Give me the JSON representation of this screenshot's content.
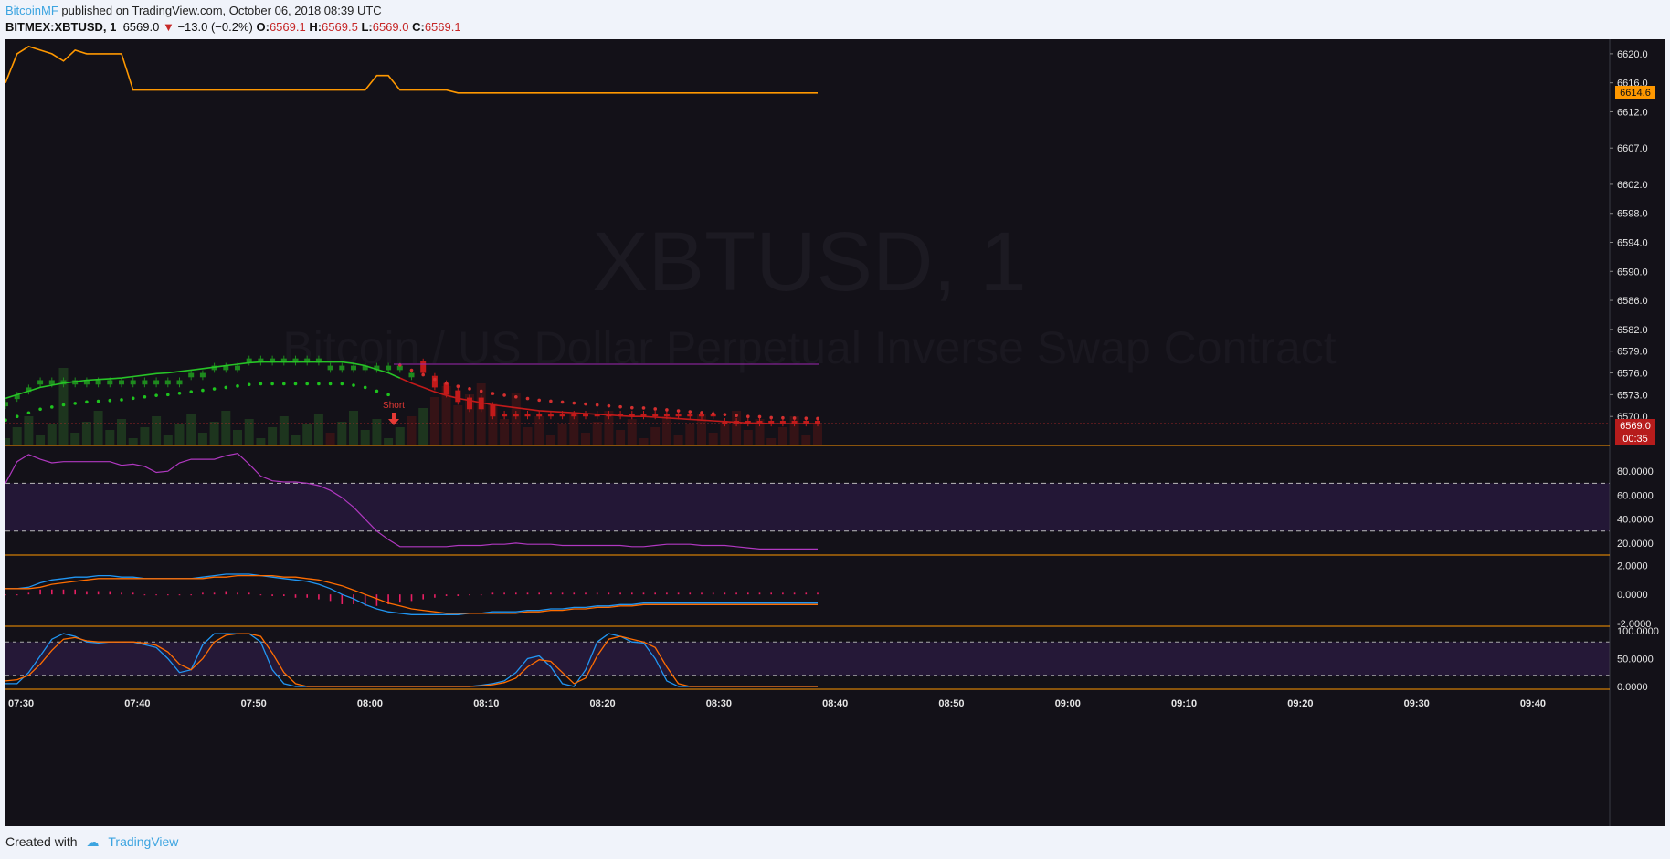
{
  "header": {
    "author": "BitcoinMF",
    "published": "published on TradingView.com, October 06, 2018 08:39 UTC"
  },
  "legend": {
    "symbol": "BITMEX:XBTUSD, 1",
    "price": "6569.0",
    "arrow": "▼",
    "change": "−13.0 (−0.2%)",
    "o_label": "O:",
    "o": "6569.1",
    "h_label": "H:",
    "h": "6569.5",
    "l_label": "L:",
    "l": "6569.0",
    "c_label": "C:",
    "c": "6569.1"
  },
  "watermark": {
    "title": "XBTUSD, 1",
    "subtitle": "Bitcoin / US Dollar Perpetual Inverse Swap Contract"
  },
  "annotation": {
    "short_label": "Short"
  },
  "price_badges": {
    "orange_value": "6614.6",
    "red_value": "6569.0",
    "countdown": "00:35"
  },
  "colors": {
    "background": "#131118",
    "up": "#1e8a1e",
    "down": "#c21a1a",
    "orange": "#ff9800",
    "purple": "#9c27b0",
    "blue": "#2196f3"
  },
  "footer": {
    "created_with": "Created with",
    "brand": "TradingView"
  },
  "chart_data": [
    {
      "type": "line",
      "pane": "price",
      "y_ticks": [
        "6620.0",
        "6616.0",
        "6612.0",
        "6607.0",
        "6602.0",
        "6598.0",
        "6594.0",
        "6590.0",
        "6586.0",
        "6582.0",
        "6579.0",
        "6576.0",
        "6573.0",
        "6570.0"
      ],
      "x_ticks": [
        "07:30",
        "07:40",
        "07:50",
        "08:00",
        "08:10",
        "08:20",
        "08:30",
        "08:40",
        "08:50",
        "09:00",
        "09:10",
        "09:20",
        "09:30",
        "09:40"
      ],
      "ylim": [
        6566,
        6622
      ],
      "series": [
        {
          "values": [
            6616,
            6620,
            6621,
            6620.5,
            6620,
            6619,
            6620.5,
            6620,
            6620,
            6620,
            6620,
            6615,
            6615,
            6615,
            6615,
            6615,
            6615,
            6615,
            6615,
            6615,
            6615,
            6615,
            6615,
            6615,
            6615,
            6615,
            6615,
            6615,
            6615,
            6615,
            6615,
            6615,
            6617,
            6617,
            6615,
            6615,
            6615,
            6615,
            6615,
            6614.6,
            6614.6,
            6614.6,
            6614.6,
            6614.6,
            6614.6,
            6614.6,
            6614.6,
            6614.6,
            6614.6,
            6614.6,
            6614.6,
            6614.6,
            6614.6,
            6614.6,
            6614.6,
            6614.6,
            6614.6,
            6614.6,
            6614.6,
            6614.6,
            6614.6,
            6614.6,
            6614.6,
            6614.6,
            6614.6,
            6614.6,
            6614.6,
            6614.6,
            6614.6,
            6614.6,
            6614.6
          ]
        },
        {
          "values": [
            6572.5,
            6573,
            6573.5,
            6574,
            6574.3,
            6574.6,
            6574.8,
            6575,
            6575.1,
            6575.2,
            6575.3,
            6575.5,
            6575.7,
            6575.9,
            6576,
            6576.2,
            6576.4,
            6576.6,
            6576.8,
            6577,
            6577.2,
            6577.4,
            6577.5,
            6577.5,
            6577.5,
            6577.5,
            6577.5,
            6577.5,
            6577.5,
            6577.5,
            6577.3,
            6577,
            6576.5,
            6576,
            6575.3,
            6574.6,
            6574,
            6573.4,
            6572.9,
            6572.5,
            6572.2,
            6571.9,
            6571.6,
            6571.4,
            6571.2,
            6571,
            6570.8,
            6570.7,
            6570.6,
            6570.5,
            6570.4,
            6570.3,
            6570.2,
            6570.1,
            6570,
            6570,
            6569.9,
            6569.8,
            6569.7,
            6569.6,
            6569.5,
            6569.4,
            6569.3,
            6569.2,
            6569.1,
            6569.1,
            6569,
            6569,
            6569,
            6569,
            6569.0
          ]
        }
      ],
      "ohlc_closes": [
        6572,
        6573,
        6574,
        6575,
        6575,
        6575,
        6575,
        6575,
        6575,
        6575,
        6575,
        6575,
        6575,
        6575,
        6575,
        6575,
        6576,
        6576,
        6577,
        6577,
        6577,
        6578,
        6578,
        6578,
        6578,
        6578,
        6578,
        6578,
        6577,
        6577,
        6577,
        6577,
        6577,
        6577,
        6577,
        6576,
        6576,
        6574,
        6573,
        6572,
        6571,
        6571,
        6570,
        6570,
        6570,
        6570,
        6570,
        6570,
        6570,
        6570,
        6570,
        6570,
        6570,
        6570,
        6570,
        6570,
        6570,
        6570,
        6570,
        6570,
        6570,
        6570,
        6569,
        6569,
        6569,
        6569,
        6569,
        6569,
        6569,
        6569,
        6569
      ]
    },
    {
      "type": "line",
      "pane": "rsi",
      "y_ticks": [
        "80.0000",
        "60.0000",
        "40.0000",
        "20.0000"
      ],
      "ylim": [
        10,
        100
      ],
      "bands": [
        30,
        70
      ],
      "series": [
        {
          "values": [
            70,
            88,
            94,
            90,
            87,
            88,
            88,
            88,
            88,
            88,
            85,
            86,
            84,
            79,
            80,
            87,
            90,
            90,
            90,
            93,
            95,
            86,
            76,
            72,
            71,
            71,
            70,
            68,
            64,
            58,
            50,
            40,
            30,
            23,
            17,
            17,
            17,
            17,
            17,
            18,
            18,
            18,
            19,
            19,
            20,
            19,
            19,
            19,
            18,
            18,
            18,
            18,
            18,
            18,
            17,
            17,
            18,
            19,
            19,
            19,
            18,
            18,
            18,
            17,
            16,
            15,
            15,
            15,
            15,
            15,
            15
          ]
        }
      ]
    },
    {
      "type": "line",
      "pane": "macd",
      "y_ticks": [
        "2.0000",
        "0.0000",
        "-2.0000"
      ],
      "ylim": [
        -2.2,
        2.6
      ],
      "series": [
        {
          "values": [
            0.4,
            0.4,
            0.5,
            0.8,
            1.0,
            1.1,
            1.2,
            1.2,
            1.3,
            1.3,
            1.2,
            1.2,
            1.1,
            1.1,
            1.1,
            1.1,
            1.1,
            1.2,
            1.3,
            1.4,
            1.4,
            1.4,
            1.3,
            1.2,
            1.1,
            1.0,
            0.9,
            0.7,
            0.4,
            0.0,
            -0.3,
            -0.7,
            -1.0,
            -1.2,
            -1.3,
            -1.4,
            -1.4,
            -1.4,
            -1.4,
            -1.4,
            -1.3,
            -1.3,
            -1.2,
            -1.2,
            -1.2,
            -1.1,
            -1.1,
            -1.0,
            -1.0,
            -0.9,
            -0.9,
            -0.8,
            -0.8,
            -0.7,
            -0.7,
            -0.6,
            -0.6,
            -0.6,
            -0.6,
            -0.6,
            -0.6,
            -0.6,
            -0.6,
            -0.6,
            -0.6,
            -0.6,
            -0.6,
            -0.6,
            -0.6,
            -0.6,
            -0.6
          ]
        },
        {
          "values": [
            0.4,
            0.4,
            0.4,
            0.5,
            0.7,
            0.8,
            0.9,
            1.0,
            1.1,
            1.1,
            1.1,
            1.1,
            1.1,
            1.1,
            1.1,
            1.1,
            1.1,
            1.1,
            1.2,
            1.2,
            1.3,
            1.3,
            1.3,
            1.3,
            1.2,
            1.2,
            1.1,
            1.0,
            0.8,
            0.6,
            0.3,
            0.0,
            -0.3,
            -0.6,
            -0.8,
            -1.0,
            -1.1,
            -1.2,
            -1.3,
            -1.3,
            -1.3,
            -1.3,
            -1.3,
            -1.3,
            -1.3,
            -1.2,
            -1.2,
            -1.1,
            -1.1,
            -1.0,
            -1.0,
            -0.9,
            -0.9,
            -0.8,
            -0.8,
            -0.7,
            -0.7,
            -0.7,
            -0.7,
            -0.7,
            -0.7,
            -0.7,
            -0.7,
            -0.7,
            -0.7,
            -0.7,
            -0.7,
            -0.7,
            -0.7,
            -0.7,
            -0.7
          ]
        }
      ]
    },
    {
      "type": "line",
      "pane": "stoch",
      "y_ticks": [
        "100.0000",
        "50.0000",
        "0.0000"
      ],
      "ylim": [
        -5,
        105
      ],
      "bands": [
        20,
        80
      ],
      "series": [
        {
          "values": [
            5,
            5,
            25,
            55,
            85,
            95,
            90,
            80,
            78,
            80,
            80,
            80,
            75,
            70,
            50,
            25,
            30,
            75,
            95,
            95,
            95,
            95,
            80,
            30,
            5,
            0,
            0,
            0,
            0,
            0,
            0,
            0,
            0,
            0,
            0,
            0,
            0,
            0,
            0,
            0,
            0,
            2,
            5,
            10,
            25,
            50,
            55,
            35,
            5,
            0,
            30,
            80,
            95,
            90,
            80,
            78,
            50,
            10,
            0,
            0,
            0,
            0,
            0,
            0,
            0,
            0,
            0,
            0,
            0,
            0,
            0
          ]
        },
        {
          "values": [
            10,
            12,
            20,
            40,
            65,
            85,
            88,
            82,
            80,
            80,
            80,
            80,
            78,
            74,
            62,
            40,
            30,
            50,
            80,
            92,
            95,
            95,
            90,
            60,
            25,
            5,
            0,
            0,
            0,
            0,
            0,
            0,
            0,
            0,
            0,
            0,
            0,
            0,
            0,
            0,
            0,
            1,
            3,
            7,
            15,
            35,
            48,
            45,
            25,
            5,
            15,
            55,
            85,
            90,
            85,
            80,
            70,
            35,
            5,
            0,
            0,
            0,
            0,
            0,
            0,
            0,
            0,
            0,
            0,
            0,
            0
          ]
        }
      ]
    }
  ]
}
